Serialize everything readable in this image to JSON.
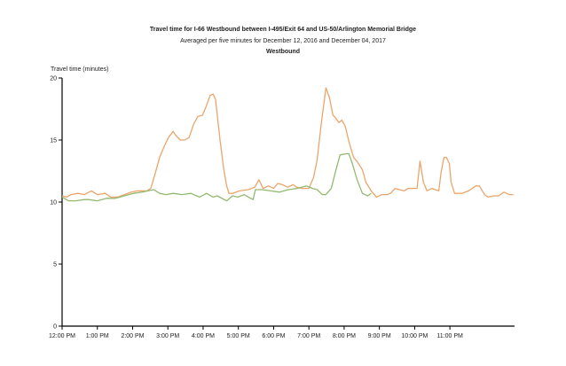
{
  "chart_data": {
    "type": "line",
    "title": "Travel time for I-66  Westbound between I-495/Exit 64 and US-50/Arlington Memorial Bridge",
    "subtitle": "Averaged per five minutes for December 12, 2016 and December 04, 2017",
    "panel_title": "Westbound",
    "ylabel": "Travel time (minutes)",
    "xlabel": "",
    "x_unit": "minutes since 12:00 PM",
    "xlim": [
      0,
      770
    ],
    "ylim": [
      0,
      20
    ],
    "grid": false,
    "xticks": [
      0,
      60,
      120,
      180,
      240,
      300,
      360,
      420,
      480,
      540,
      600,
      660
    ],
    "xtick_labels": [
      "12:00 PM",
      "1:00 PM",
      "2:00 PM",
      "3:00 PM",
      "4:00 PM",
      "5:00 PM",
      "6:00 PM",
      "7:00 PM",
      "8:00 PM",
      "9:00 PM",
      "10:00 PM",
      "11:00 PM"
    ],
    "yticks": [
      0,
      5,
      10,
      15,
      20
    ],
    "ytick_labels": [
      "0",
      "5",
      "10",
      "15",
      "20"
    ],
    "series": [
      {
        "name": "December 12, 2016",
        "color": "#eba56a",
        "points": [
          [
            0,
            10.5
          ],
          [
            8,
            10.4
          ],
          [
            15,
            10.6
          ],
          [
            27,
            10.7
          ],
          [
            38,
            10.6
          ],
          [
            50,
            10.9
          ],
          [
            60,
            10.6
          ],
          [
            73,
            10.7
          ],
          [
            83,
            10.4
          ],
          [
            95,
            10.4
          ],
          [
            106,
            10.6
          ],
          [
            118,
            10.8
          ],
          [
            128,
            10.9
          ],
          [
            136,
            10.9
          ],
          [
            144,
            10.9
          ],
          [
            151,
            11.1
          ],
          [
            159,
            12.4
          ],
          [
            166,
            13.6
          ],
          [
            174,
            14.5
          ],
          [
            181,
            15.2
          ],
          [
            189,
            15.7
          ],
          [
            193,
            15.4
          ],
          [
            201,
            15.0
          ],
          [
            209,
            15.0
          ],
          [
            216,
            15.2
          ],
          [
            224,
            16.3
          ],
          [
            231,
            16.9
          ],
          [
            239,
            17.0
          ],
          [
            245,
            17.7
          ],
          [
            252,
            18.6
          ],
          [
            257,
            18.7
          ],
          [
            261,
            18.3
          ],
          [
            269,
            14.9
          ],
          [
            275,
            12.7
          ],
          [
            280,
            11.3
          ],
          [
            284,
            10.7
          ],
          [
            290,
            10.7
          ],
          [
            302,
            10.9
          ],
          [
            317,
            11.0
          ],
          [
            328,
            11.2
          ],
          [
            335,
            11.8
          ],
          [
            342,
            11.1
          ],
          [
            351,
            11.3
          ],
          [
            360,
            11.1
          ],
          [
            367,
            11.5
          ],
          [
            375,
            11.4
          ],
          [
            384,
            11.2
          ],
          [
            393,
            11.4
          ],
          [
            399,
            11.2
          ],
          [
            408,
            11.1
          ],
          [
            420,
            11.1
          ],
          [
            428,
            12.0
          ],
          [
            434,
            13.4
          ],
          [
            441,
            16.3
          ],
          [
            449,
            19.2
          ],
          [
            455,
            18.4
          ],
          [
            461,
            17.0
          ],
          [
            465,
            16.8
          ],
          [
            471,
            16.4
          ],
          [
            476,
            16.6
          ],
          [
            482,
            16.1
          ],
          [
            488,
            14.9
          ],
          [
            496,
            13.6
          ],
          [
            503,
            13.2
          ],
          [
            511,
            12.6
          ],
          [
            517,
            11.6
          ],
          [
            526,
            10.9
          ],
          [
            535,
            10.4
          ],
          [
            544,
            10.6
          ],
          [
            553,
            10.6
          ],
          [
            559,
            10.7
          ],
          [
            567,
            11.1
          ],
          [
            574,
            11.0
          ],
          [
            582,
            10.9
          ],
          [
            589,
            11.1
          ],
          [
            598,
            11.1
          ],
          [
            604,
            11.1
          ],
          [
            609,
            13.3
          ],
          [
            615,
            11.6
          ],
          [
            621,
            10.9
          ],
          [
            629,
            11.1
          ],
          [
            635,
            11.0
          ],
          [
            641,
            10.9
          ],
          [
            645,
            12.4
          ],
          [
            650,
            13.6
          ],
          [
            654,
            13.6
          ],
          [
            659,
            13.1
          ],
          [
            662,
            11.6
          ],
          [
            668,
            10.7
          ],
          [
            680,
            10.7
          ],
          [
            692,
            10.9
          ],
          [
            704,
            11.3
          ],
          [
            710,
            11.3
          ],
          [
            719,
            10.6
          ],
          [
            725,
            10.4
          ],
          [
            734,
            10.5
          ],
          [
            743,
            10.5
          ],
          [
            752,
            10.8
          ],
          [
            761,
            10.6
          ],
          [
            768,
            10.6
          ]
        ]
      },
      {
        "name": "December 04, 2017",
        "color": "#93b96e",
        "points": [
          [
            0,
            10.4
          ],
          [
            11,
            10.1
          ],
          [
            23,
            10.1
          ],
          [
            38,
            10.2
          ],
          [
            45,
            10.2
          ],
          [
            60,
            10.1
          ],
          [
            76,
            10.3
          ],
          [
            91,
            10.3
          ],
          [
            106,
            10.5
          ],
          [
            121,
            10.7
          ],
          [
            136,
            10.8
          ],
          [
            156,
            11.0
          ],
          [
            166,
            10.7
          ],
          [
            177,
            10.6
          ],
          [
            189,
            10.7
          ],
          [
            204,
            10.6
          ],
          [
            219,
            10.7
          ],
          [
            234,
            10.4
          ],
          [
            246,
            10.7
          ],
          [
            257,
            10.4
          ],
          [
            264,
            10.5
          ],
          [
            280,
            10.1
          ],
          [
            290,
            10.5
          ],
          [
            299,
            10.4
          ],
          [
            310,
            10.6
          ],
          [
            317,
            10.4
          ],
          [
            325,
            10.2
          ],
          [
            329,
            11.0
          ],
          [
            340,
            11.0
          ],
          [
            355,
            10.9
          ],
          [
            370,
            10.8
          ],
          [
            385,
            11.0
          ],
          [
            400,
            11.1
          ],
          [
            416,
            11.3
          ],
          [
            426,
            11.1
          ],
          [
            434,
            11.0
          ],
          [
            443,
            10.6
          ],
          [
            449,
            10.6
          ],
          [
            458,
            11.1
          ],
          [
            465,
            12.4
          ],
          [
            473,
            13.8
          ],
          [
            484,
            13.9
          ],
          [
            488,
            13.9
          ],
          [
            494,
            13.1
          ],
          [
            502,
            11.8
          ],
          [
            511,
            10.7
          ],
          [
            520,
            10.5
          ],
          [
            526,
            10.7
          ]
        ]
      }
    ]
  }
}
